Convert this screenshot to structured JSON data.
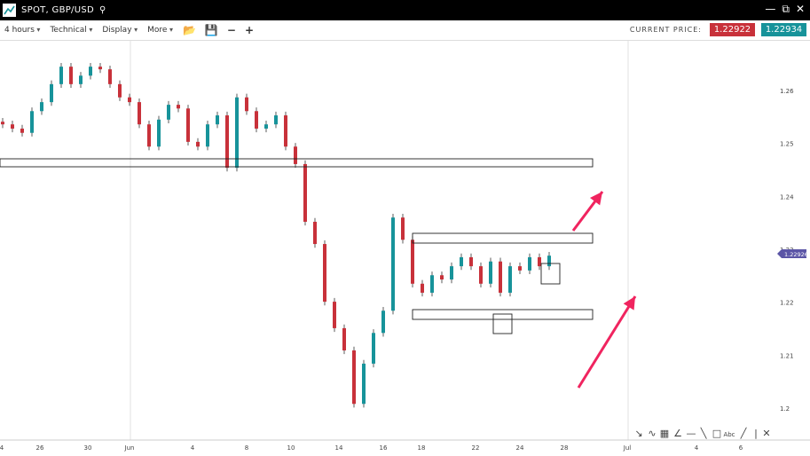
{
  "window": {
    "title": "SPOT, GBP/USD",
    "search_icon": "search-icon"
  },
  "toolbar": {
    "timeframe": "4 hours",
    "technical": "Technical",
    "display": "Display",
    "more": "More"
  },
  "price": {
    "label": "CURRENT PRICE:",
    "bid": "1.22922",
    "ask": "1.22934",
    "bid_color": "#c8313a",
    "ask_color": "#17939a",
    "marker": "1.22926",
    "marker_color": "#5b55a6"
  },
  "chart_data": {
    "type": "candlestick",
    "y_ticks": [
      "1.26",
      "1.25",
      "1.24",
      "1.23",
      "1.22",
      "1.21",
      "1.2"
    ],
    "x_ticks": [
      "4",
      "26",
      "30",
      "Jun",
      "4",
      "8",
      "10",
      "14",
      "16",
      "18",
      "22",
      "24",
      "28",
      "Jul",
      "4",
      "6"
    ],
    "closes": [
      1.2536,
      1.2528,
      1.252,
      1.2561,
      1.2578,
      1.2612,
      1.2645,
      1.2612,
      1.2628,
      1.2645,
      1.264,
      1.2612,
      1.2587,
      1.2578,
      1.2536,
      1.2494,
      1.2545,
      1.2573,
      1.2566,
      1.2503,
      1.2494,
      1.2536,
      1.2553,
      1.2454,
      1.2587,
      1.2561,
      1.2528,
      1.2536,
      1.2553,
      1.2494,
      1.2461,
      1.2352,
      1.231,
      1.2201,
      1.2151,
      1.2109,
      1.2008,
      1.2084,
      1.2142,
      1.2184,
      1.236,
      1.2318,
      1.2235,
      1.2218,
      1.2251,
      1.2243,
      1.2268,
      1.2285,
      1.2268,
      1.2235,
      1.2277,
      1.2218,
      1.2268,
      1.226,
      1.2285,
      1.2268,
      1.2288
    ],
    "up_color": "#17939a",
    "down_color": "#c8313a",
    "annotation_color": "#f0245f"
  },
  "drawing_tools": [
    "arrow-tool",
    "curve-tool",
    "fibonacci-tool",
    "fan-tool",
    "horizontal-line-tool",
    "trend-line-tool",
    "rectangle-tool",
    "text-tool",
    "ray-tool",
    "vertical-line-tool",
    "close-tools"
  ]
}
